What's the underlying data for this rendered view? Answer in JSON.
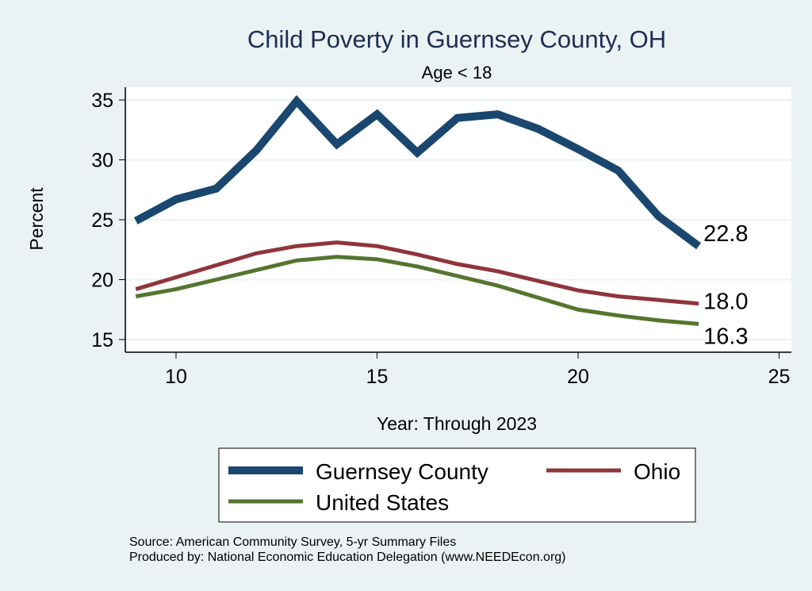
{
  "chart_data": {
    "type": "line",
    "title": "Child Poverty in Guernsey County, OH",
    "subtitle": "Age < 18",
    "xlabel": "Year: Through 2023",
    "ylabel": "Percent",
    "xlim": [
      8.75,
      25.3
    ],
    "ylim": [
      14.3,
      36
    ],
    "xticks": [
      10,
      15,
      20,
      25
    ],
    "yticks": [
      15,
      20,
      25,
      30,
      35
    ],
    "grid": true,
    "legend_placement": "bottom",
    "x": [
      9,
      10,
      11,
      12,
      13,
      14,
      15,
      16,
      17,
      18,
      19,
      20,
      21,
      22,
      23
    ],
    "series": [
      {
        "name": "Guernsey County",
        "color": "#1a476f",
        "values": [
          24.9,
          26.7,
          27.6,
          30.8,
          34.9,
          31.3,
          33.8,
          30.6,
          33.5,
          33.8,
          32.6,
          30.9,
          29.1,
          25.3,
          22.8
        ],
        "end_label": "22.8"
      },
      {
        "name": "Ohio",
        "color": "#90353b",
        "values": [
          19.2,
          20.2,
          21.2,
          22.2,
          22.8,
          23.1,
          22.8,
          22.1,
          21.3,
          20.7,
          19.9,
          19.1,
          18.6,
          18.3,
          18.0
        ],
        "end_label": "18.0"
      },
      {
        "name": "United States",
        "color": "#55752f",
        "values": [
          18.6,
          19.2,
          20.0,
          20.8,
          21.6,
          21.9,
          21.7,
          21.1,
          20.3,
          19.5,
          18.5,
          17.5,
          17.0,
          16.6,
          16.3
        ],
        "end_label": "16.3"
      }
    ]
  },
  "notes": [
    "Source: American Community Survey, 5-yr Summary Files",
    "Produced by: National Economic Education Delegation (www.NEEDEcon.org)"
  ]
}
